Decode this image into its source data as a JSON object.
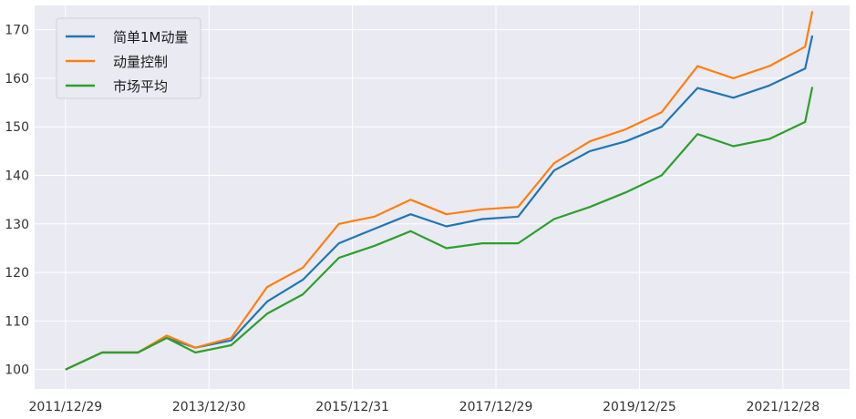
{
  "chart_data": {
    "type": "line",
    "title": "",
    "xlabel": "",
    "ylabel": "",
    "x_ticks": [
      "2011/12/29",
      "2013/12/30",
      "2015/12/31",
      "2017/12/29",
      "2019/12/25",
      "2021/12/28"
    ],
    "x": [
      2011.99,
      2012.5,
      2013.0,
      2013.4,
      2013.8,
      2014.3,
      2014.8,
      2015.3,
      2015.8,
      2016.3,
      2016.8,
      2017.3,
      2017.8,
      2018.3,
      2018.8,
      2019.3,
      2019.8,
      2020.3,
      2020.8,
      2021.3,
      2021.8,
      2022.3,
      2022.4
    ],
    "ylim": [
      96,
      175
    ],
    "y_ticks": [
      100,
      110,
      120,
      130,
      140,
      150,
      160,
      170
    ],
    "grid": true,
    "legend_position": "top-left",
    "series": [
      {
        "name": "简单1M动量",
        "color": "#1f77b4",
        "values": [
          100,
          103.5,
          103.5,
          106.5,
          104.5,
          106,
          114,
          118.5,
          126,
          129,
          132,
          129.5,
          131,
          131.5,
          141,
          145,
          147,
          150,
          158,
          156,
          158.5,
          162,
          168.8
        ]
      },
      {
        "name": "动量控制",
        "color": "#ff7f0e",
        "values": [
          100,
          103.5,
          103.5,
          107,
          104.5,
          106.5,
          117,
          121,
          130,
          131.5,
          135,
          132,
          133,
          133.5,
          142.5,
          147,
          149.5,
          153,
          162.5,
          160,
          162.5,
          166.5,
          173.8
        ]
      },
      {
        "name": "市场平均",
        "color": "#2ca02c",
        "values": [
          100,
          103.5,
          103.5,
          106.5,
          103.5,
          105,
          111.5,
          115.5,
          123,
          125.5,
          128.5,
          125,
          126,
          126,
          131,
          133.5,
          136.5,
          140,
          148.5,
          146,
          147.5,
          151,
          158.2
        ]
      }
    ]
  }
}
